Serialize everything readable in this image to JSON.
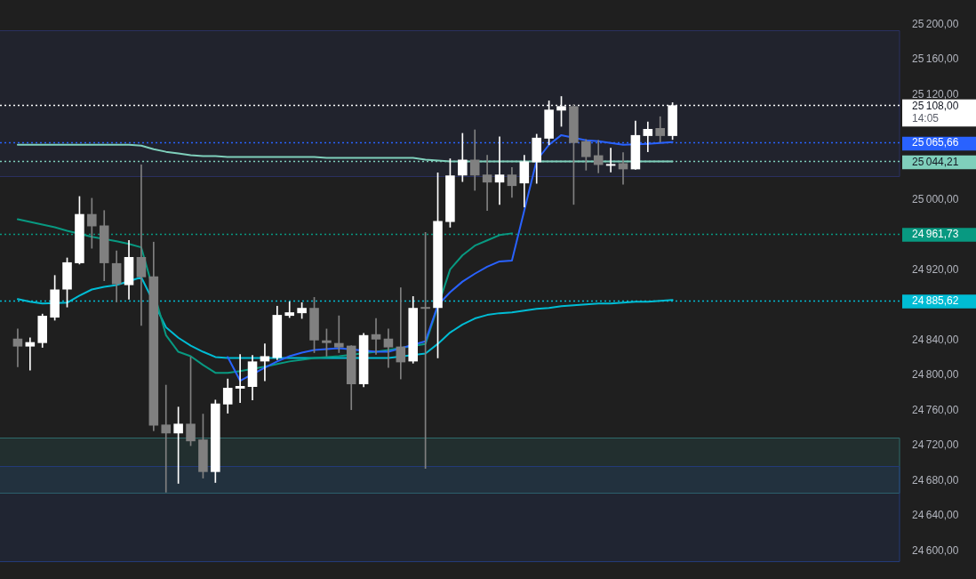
{
  "chart_data": {
    "type": "candlestick",
    "categories": [
      null,
      null,
      null,
      null,
      null,
      null,
      null,
      null,
      null,
      null,
      null,
      null,
      null,
      null,
      null,
      null,
      null,
      null,
      null,
      null,
      null,
      null,
      null,
      null,
      null,
      null,
      null,
      null,
      null,
      null,
      null,
      null,
      null,
      null,
      null,
      null,
      null,
      null,
      null,
      null,
      null,
      null,
      null,
      null,
      null,
      null,
      null,
      null,
      null,
      null,
      null,
      null,
      null,
      null
    ],
    "ohlc": [
      [
        24842,
        24853,
        24810,
        24833
      ],
      [
        24833,
        24843,
        24806,
        24838
      ],
      [
        24837,
        24870,
        24832,
        24868
      ],
      [
        24866,
        24914,
        24863,
        24898
      ],
      [
        24898,
        24934,
        24878,
        24929
      ],
      [
        24928,
        25004,
        24927,
        24984
      ],
      [
        24984,
        25002,
        24945,
        24970
      ],
      [
        24971,
        24988,
        24908,
        24928
      ],
      [
        24928,
        24942,
        24884,
        24904
      ],
      [
        24903,
        24954,
        24887,
        24935
      ],
      [
        24935,
        25040,
        24857,
        24912
      ],
      [
        24913,
        24952,
        24737,
        24743
      ],
      [
        24744,
        24789,
        24667,
        24734
      ],
      [
        24734,
        24764,
        24677,
        24745
      ],
      [
        24745,
        24821,
        24720,
        24725
      ],
      [
        24727,
        24756,
        24683,
        24690
      ],
      [
        24690,
        24772,
        24678,
        24768
      ],
      [
        24767,
        24796,
        24757,
        24786
      ],
      [
        24785,
        24824,
        24769,
        24788
      ],
      [
        24787,
        24823,
        24772,
        24816
      ],
      [
        24816,
        24836,
        24794,
        24822
      ],
      [
        24820,
        24879,
        24818,
        24869
      ],
      [
        24868,
        24884,
        24866,
        24872
      ],
      [
        24871,
        24883,
        24865,
        24877
      ],
      [
        24877,
        24889,
        24826,
        24840
      ],
      [
        24840,
        24853,
        24822,
        24837
      ],
      [
        24837,
        24868,
        24826,
        24832
      ],
      [
        24834,
        24834,
        24761,
        24790
      ],
      [
        24790,
        24848,
        24787,
        24846
      ],
      [
        24847,
        24865,
        24824,
        24841
      ],
      [
        24842,
        24853,
        24809,
        24832
      ],
      [
        24833,
        24900,
        24796,
        24815
      ],
      [
        24816,
        24890,
        24814,
        24877
      ],
      [
        24876,
        24963,
        24694,
        24876
      ],
      [
        24877,
        25031,
        24820,
        24976
      ],
      [
        24975,
        25047,
        24969,
        25028
      ],
      [
        25028,
        25076,
        25021,
        25046
      ],
      [
        25046,
        25080,
        25011,
        25028
      ],
      [
        25029,
        25051,
        24988,
        25020
      ],
      [
        25020,
        25072,
        24995,
        25029
      ],
      [
        25029,
        25037,
        25003,
        25016
      ],
      [
        25019,
        25051,
        24992,
        25044
      ],
      [
        25043,
        25075,
        25019,
        25071
      ],
      [
        25070,
        25113,
        25063,
        25103
      ],
      [
        25102,
        25118,
        25084,
        25107
      ],
      [
        25107,
        25109,
        24995,
        25065
      ],
      [
        25067,
        25069,
        25034,
        25049
      ],
      [
        25051,
        25068,
        25031,
        25040
      ],
      [
        25039,
        25059,
        25032,
        25040
      ],
      [
        25042,
        25054,
        25018,
        25035
      ],
      [
        25035,
        25090,
        25035,
        25074
      ],
      [
        25073,
        25089,
        25055,
        25081
      ],
      [
        25082,
        25095,
        25066,
        25073
      ],
      [
        25073,
        25111,
        25069,
        25108
      ]
    ],
    "colors": [
      "#808080",
      "#ffffff",
      "#ffffff",
      "#ffffff",
      "#ffffff",
      "#ffffff",
      "#808080",
      "#808080",
      "#808080",
      "#ffffff",
      "#808080",
      "#808080",
      "#808080",
      "#ffffff",
      "#808080",
      "#808080",
      "#ffffff",
      "#ffffff",
      "#ffffff",
      "#ffffff",
      "#ffffff",
      "#ffffff",
      "#ffffff",
      "#ffffff",
      "#808080",
      "#808080",
      "#808080",
      "#808080",
      "#ffffff",
      "#808080",
      "#808080",
      "#808080",
      "#ffffff",
      "#808080",
      "#ffffff",
      "#ffffff",
      "#ffffff",
      "#808080",
      "#808080",
      "#ffffff",
      "#808080",
      "#ffffff",
      "#ffffff",
      "#ffffff",
      "#ffffff",
      "#808080",
      "#808080",
      "#808080",
      "#ffffff",
      "#808080",
      "#ffffff",
      "#ffffff",
      "#808080",
      "#ffffff"
    ],
    "series": [
      {
        "type": "line",
        "color": "#7fcfbb",
        "values": [
          25063,
          25063,
          25063,
          25063,
          25063,
          25063,
          25063,
          25063,
          25063,
          25063,
          25062,
          25058,
          25055,
          25053,
          25051,
          25050,
          25050,
          25049,
          25049,
          25049,
          25049,
          25049,
          25049,
          25049,
          25049,
          25048,
          25048,
          25048,
          25048,
          25048,
          25048,
          25048,
          25048,
          25046,
          25045,
          25044,
          null,
          null,
          25044,
          25044,
          25044,
          25044,
          null,
          25044,
          25044,
          25044,
          25044,
          null,
          25044,
          25044,
          null,
          25044,
          25044,
          25044
        ]
      },
      {
        "type": "line",
        "color": "#00bcd4",
        "values": [
          24887,
          24884,
          24882,
          null,
          24883,
          24891,
          24898,
          24901,
          24903,
          null,
          24912,
          null,
          24855,
          24843,
          24834,
          24827,
          24821,
          24820,
          24820,
          24820,
          null,
          24820,
          24820,
          24820,
          24820,
          24820,
          24820,
          null,
          null,
          24820,
          24820,
          null,
          null,
          24825,
          24836,
          24849,
          24858,
          24865,
          24869,
          24871,
          24872,
          24874,
          24876,
          24877,
          24879,
          24880,
          24881,
          24882,
          24882,
          24883,
          24884,
          24884,
          24885,
          24886
        ]
      },
      {
        "type": "line",
        "color": "#089981",
        "values": [
          24978,
          24975,
          24972,
          24969,
          24965,
          null,
          24958,
          null,
          24953,
          24950,
          24946,
          null,
          24846,
          24827,
          24822,
          24812,
          24803,
          24803,
          24805,
          null,
          24810,
          24813,
          24816,
          24818,
          24820,
          24821,
          24822,
          null,
          null,
          24827,
          24829,
          null,
          null,
          24836,
          null,
          24921,
          24937,
          24948,
          24954,
          24960,
          24962,
          null,
          null,
          null,
          null,
          null,
          null,
          null,
          null,
          null,
          null,
          null,
          null,
          null
        ]
      },
      {
        "type": "line",
        "color": "#2962ff",
        "values": [
          null,
          null,
          null,
          null,
          null,
          null,
          null,
          null,
          null,
          null,
          null,
          null,
          null,
          null,
          null,
          null,
          null,
          24821,
          24794,
          null,
          24809,
          24816,
          24822,
          24826,
          24829,
          24830,
          24831,
          null,
          null,
          24827,
          24827,
          null,
          null,
          24839,
          24880,
          24895,
          24907,
          24916,
          24924,
          24930,
          24931,
          null,
          25045,
          25063,
          25074,
          null,
          25068,
          25067,
          25065,
          25063,
          null,
          25064,
          25065,
          25066
        ]
      }
    ],
    "ylim": [
      24568,
      25228
    ],
    "yticks": [
      {
        "value": 24600,
        "label": "24 600,00"
      },
      {
        "value": 24640,
        "label": "24 640,00"
      },
      {
        "value": 24680,
        "label": "24 680,00"
      },
      {
        "value": 24720,
        "label": "24 720,00"
      },
      {
        "value": 24760,
        "label": "24 760,00"
      },
      {
        "value": 24800,
        "label": "24 800,00"
      },
      {
        "value": 24840,
        "label": "24 840,00"
      },
      {
        "value": 24920,
        "label": "24 920,00"
      },
      {
        "value": 25000,
        "label": "25 000,00"
      },
      {
        "value": 25120,
        "label": "25 120,00"
      },
      {
        "value": 25160,
        "label": "25 160,00"
      },
      {
        "value": 25200,
        "label": "25 200,00"
      }
    ],
    "tick_labels": "y",
    "marker": "none",
    "ref_lines": [
      {
        "axis": "y",
        "value": 25108,
        "label": "25 108,00",
        "color": "#ffffff",
        "line_style": "dotted"
      },
      {
        "axis": "y",
        "value": 25065.66,
        "label": "25 065,66",
        "color": "#2962ff",
        "line_style": "dotted"
      },
      {
        "axis": "y",
        "value": 25044.21,
        "label": "25 044,21",
        "color": "#7fcfbb",
        "line_style": "dotted"
      },
      {
        "axis": "y",
        "value": 24961.73,
        "label": "24 961,73",
        "color": "#089981",
        "line_style": "dotted"
      },
      {
        "axis": "y",
        "value": 24885.62,
        "label": "24 885,62",
        "color": "#00bcd4",
        "line_style": "dotted"
      }
    ],
    "bands": [
      {
        "axis": "y",
        "from": 25027,
        "to": 25194,
        "color": "#2a3060"
      },
      {
        "axis": "y",
        "from": 24666,
        "to": 24729,
        "color": "#2f6b6b"
      },
      {
        "axis": "y",
        "from": 24588,
        "to": 24697,
        "color": "#233a78"
      }
    ],
    "annotations": [
      "14:05"
    ]
  }
}
